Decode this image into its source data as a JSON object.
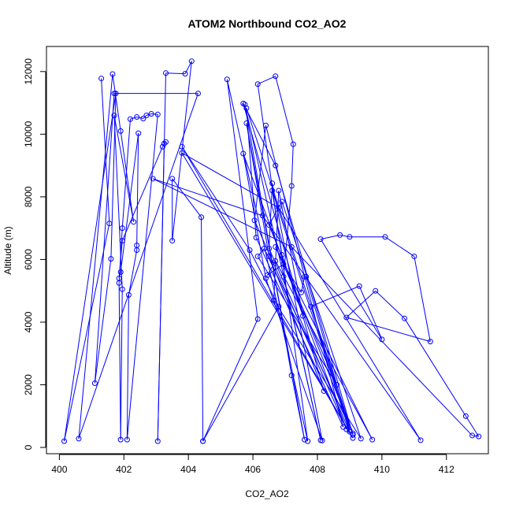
{
  "chart_data": {
    "type": "line",
    "title": "ATOM2 Northbound CO2_AO2",
    "xlabel": "CO2_AO2",
    "ylabel": "Altitude (m)",
    "xlim": [
      399.6,
      413.3
    ],
    "ylim": [
      -200,
      12800
    ],
    "xticks": [
      400,
      402,
      404,
      406,
      408,
      410,
      412
    ],
    "yticks": [
      0,
      2000,
      4000,
      6000,
      8000,
      10000,
      12000
    ],
    "grid": false,
    "legend": "none",
    "series_color": "#0000FF",
    "series": [
      {
        "values": [
          [
            401.3,
            11780
          ],
          [
            401.55,
            7150
          ],
          [
            400.15,
            200
          ],
          [
            401.75,
            11300
          ],
          [
            401.6,
            6020
          ],
          [
            401.1,
            2050
          ],
          [
            401.7,
            11300
          ],
          [
            404.3,
            11300
          ],
          [
            400.6,
            280
          ],
          [
            401.65,
            11920
          ],
          [
            401.9,
            10100
          ],
          [
            402.3,
            7200
          ],
          [
            401.7,
            10600
          ],
          [
            401.95,
            5050
          ],
          [
            401.9,
            250
          ],
          [
            401.85,
            5250
          ],
          [
            401.95,
            7000
          ],
          [
            402.2,
            10480
          ],
          [
            402.4,
            10550
          ],
          [
            402.6,
            10500
          ],
          [
            402.7,
            10600
          ],
          [
            402.85,
            10650
          ],
          [
            403.05,
            10630
          ],
          [
            402.1,
            250
          ],
          [
            402.15,
            4870
          ],
          [
            402.4,
            6300
          ],
          [
            402.4,
            6450
          ],
          [
            402.45,
            10030
          ],
          [
            401.9,
            5600
          ],
          [
            401.85,
            5400
          ],
          [
            401.95,
            6600
          ],
          [
            403.2,
            9600
          ],
          [
            403.3,
            9750
          ],
          [
            403.25,
            9700
          ],
          [
            403.05,
            200
          ],
          [
            403.3,
            11950
          ],
          [
            403.9,
            11930
          ],
          [
            404.1,
            12330
          ],
          [
            403.5,
            6600
          ],
          [
            403.5,
            8580
          ],
          [
            404.4,
            7350
          ],
          [
            404.45,
            200
          ],
          [
            406.15,
            4100
          ],
          [
            405.2,
            11750
          ],
          [
            407.7,
            200
          ],
          [
            406.15,
            11600
          ],
          [
            406.7,
            11850
          ],
          [
            407.25,
            9680
          ],
          [
            407.2,
            8350
          ],
          [
            406.95,
            5450
          ],
          [
            408.1,
            230
          ],
          [
            405.75,
            10950
          ],
          [
            407.2,
            2300
          ],
          [
            407.6,
            250
          ],
          [
            405.8,
            10350
          ],
          [
            406.5,
            6100
          ],
          [
            408.2,
            1800
          ],
          [
            405.7,
            10980
          ],
          [
            406.7,
            9000
          ],
          [
            409.1,
            400
          ],
          [
            405.8,
            10830
          ],
          [
            406.1,
            6700
          ],
          [
            408.8,
            650
          ],
          [
            406.4,
            10280
          ],
          [
            406.05,
            7250
          ],
          [
            408.9,
            580
          ],
          [
            405.7,
            9380
          ],
          [
            406.4,
            5400
          ],
          [
            408.15,
            220
          ],
          [
            406.6,
            8430
          ],
          [
            406.5,
            6350
          ],
          [
            409.0,
            500
          ],
          [
            406.6,
            8200
          ],
          [
            406.9,
            6150
          ],
          [
            407.55,
            4200
          ],
          [
            406.8,
            8200
          ],
          [
            406.65,
            4700
          ],
          [
            409.35,
            280
          ],
          [
            406.9,
            7850
          ],
          [
            406.5,
            7100
          ],
          [
            409.1,
            450
          ],
          [
            406.35,
            6350
          ],
          [
            406.15,
            6100
          ],
          [
            408.6,
            2000
          ],
          [
            406.7,
            6400
          ],
          [
            409.7,
            250
          ],
          [
            406.7,
            5950
          ],
          [
            406.45,
            5500
          ],
          [
            406.95,
            5850
          ],
          [
            407.5,
            4950
          ],
          [
            407.6,
            5450
          ],
          [
            407.65,
            5450
          ],
          [
            409.0,
            550
          ],
          [
            407.8,
            4500
          ],
          [
            409.3,
            5150
          ],
          [
            410.0,
            3450
          ],
          [
            408.1,
            6650
          ],
          [
            408.7,
            6780
          ],
          [
            409.0,
            6720
          ],
          [
            410.1,
            6720
          ],
          [
            411.0,
            6100
          ],
          [
            411.5,
            3380
          ],
          [
            408.9,
            4150
          ],
          [
            409.8,
            5000
          ],
          [
            410.7,
            4120
          ],
          [
            412.6,
            1000
          ],
          [
            413.0,
            350
          ],
          [
            412.8,
            380
          ],
          [
            407.2,
            6400
          ],
          [
            402.9,
            8580
          ],
          [
            406.3,
            7400
          ],
          [
            411.2,
            230
          ],
          [
            406.8,
            7650
          ],
          [
            403.8,
            9400
          ],
          [
            409.1,
            300
          ],
          [
            403.8,
            9600
          ],
          [
            405.9,
            6300
          ],
          [
            406.8,
            4500
          ],
          [
            404.45,
            200
          ]
        ]
      }
    ]
  }
}
